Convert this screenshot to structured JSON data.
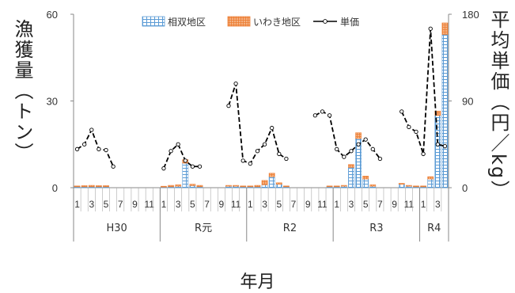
{
  "chart_data": {
    "type": "bar",
    "xlabel": "年月",
    "ylabel": "漁獲量（トン）",
    "y2label": "平均単価（円／kg）",
    "ylim": [
      0,
      60
    ],
    "yticks": [
      0,
      30,
      60
    ],
    "y2lim": [
      0,
      180
    ],
    "y2ticks": [
      0,
      90,
      180
    ],
    "legend": {
      "position": "top-center",
      "entries": [
        "相双地区",
        "いわき地区",
        "単価"
      ]
    },
    "colors": {
      "soso": "#5b9bd5",
      "iwaki": "#ed7d31",
      "price": "#000000"
    },
    "groups": [
      {
        "label": "H30",
        "months": 12
      },
      {
        "label": "R元",
        "months": 12
      },
      {
        "label": "R2",
        "months": 12
      },
      {
        "label": "R3",
        "months": 12
      },
      {
        "label": "R4",
        "months": 4
      }
    ],
    "categories": [
      "1",
      "2",
      "3",
      "4",
      "5",
      "6",
      "7",
      "8",
      "9",
      "10",
      "11",
      "12",
      "1",
      "2",
      "3",
      "4",
      "5",
      "6",
      "7",
      "8",
      "9",
      "10",
      "11",
      "12",
      "1",
      "2",
      "3",
      "4",
      "5",
      "6",
      "7",
      "8",
      "9",
      "10",
      "11",
      "12",
      "1",
      "2",
      "3",
      "4",
      "5",
      "6",
      "7",
      "8",
      "9",
      "10",
      "11",
      "12",
      "1",
      "2",
      "3",
      "4"
    ],
    "x_tick_labels": [
      "1",
      "",
      "3",
      "",
      "5",
      "",
      "7",
      "",
      "9",
      "",
      "11",
      "",
      "1",
      "",
      "3",
      "",
      "5",
      "",
      "7",
      "",
      "9",
      "",
      "11",
      "",
      "1",
      "",
      "3",
      "",
      "5",
      "",
      "7",
      "",
      "9",
      "",
      "11",
      "",
      "1",
      "",
      "3",
      "",
      "5",
      "",
      "7",
      "",
      "9",
      "",
      "11",
      "",
      "1",
      "",
      "3",
      ""
    ],
    "series": [
      {
        "name": "相双地区",
        "kind": "bar",
        "axis": "left",
        "values": [
          0.3,
          0.3,
          0.3,
          0.3,
          0.3,
          0,
          0,
          0,
          0,
          0,
          0,
          0,
          0.2,
          0.3,
          0.5,
          8.5,
          0.7,
          0.3,
          0,
          0,
          0,
          0.5,
          0.5,
          0.3,
          0.3,
          0.3,
          1,
          3.8,
          1.2,
          0.3,
          0,
          0,
          0,
          0,
          0,
          0.3,
          0.3,
          0.5,
          7,
          17,
          3,
          0.5,
          0,
          0,
          0,
          1.2,
          0.5,
          0.3,
          0.3,
          3,
          25,
          53
        ]
      },
      {
        "name": "いわき地区",
        "kind": "bar",
        "axis": "left",
        "values": [
          0.3,
          0.4,
          0.5,
          0.4,
          0.4,
          0,
          0,
          0,
          0,
          0,
          0,
          0,
          0.3,
          0.5,
          0.5,
          1.2,
          0.5,
          0.5,
          0,
          0,
          0,
          0.3,
          0.3,
          0.3,
          0.3,
          0.5,
          1.5,
          1.2,
          0.5,
          0.3,
          0,
          0,
          0,
          0,
          0,
          0.3,
          0.3,
          0.3,
          1,
          2,
          1,
          0.5,
          0,
          0,
          0,
          0.3,
          0.3,
          0.3,
          0.3,
          0.8,
          1.5,
          4
        ]
      },
      {
        "name": "単価",
        "kind": "line",
        "axis": "right",
        "values": [
          40,
          45,
          60,
          40,
          39,
          22,
          null,
          null,
          null,
          null,
          null,
          null,
          20,
          38,
          45,
          28,
          22,
          22,
          null,
          null,
          null,
          85,
          108,
          28,
          25,
          38,
          45,
          62,
          35,
          30,
          null,
          null,
          null,
          75,
          79,
          75,
          40,
          32,
          38,
          45,
          50,
          40,
          30,
          null,
          null,
          79,
          63,
          58,
          35,
          165,
          45,
          43
        ]
      }
    ]
  }
}
